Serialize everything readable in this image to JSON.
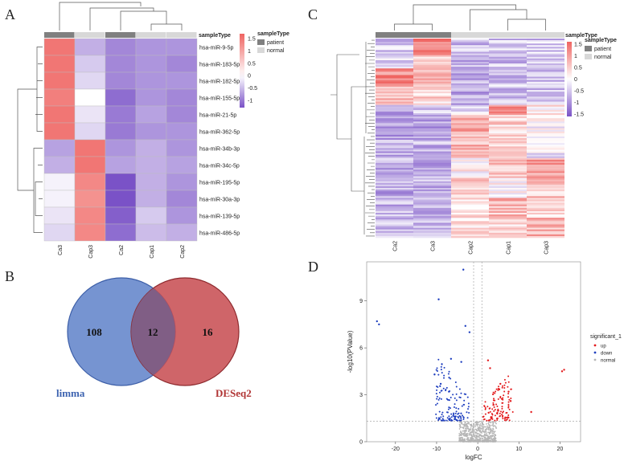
{
  "panels": {
    "A": "A",
    "B": "B",
    "C": "C",
    "D": "D"
  },
  "colors": {
    "high": "#ef6461",
    "mid": "#ffffff",
    "low": "#7a52c7",
    "patient": "#808080",
    "normal": "#d8d8d8",
    "limma": "#4472c4",
    "deseq2": "#c0392b",
    "up": "#e31a1c",
    "down": "#1f3fbf",
    "ns": "#b5b5b5"
  },
  "chart_data": [
    {
      "panel": "A",
      "type": "heatmap",
      "legend_title": "sampleType",
      "legend": [
        {
          "label": "patient",
          "color": "#808080"
        },
        {
          "label": "normal",
          "color": "#d8d8d8"
        }
      ],
      "annotation_title": "sampleType",
      "columns": [
        "Ca3",
        "Cap3",
        "Ca2",
        "Cap1",
        "Cap2"
      ],
      "column_types": [
        "patient",
        "normal",
        "patient",
        "normal",
        "normal"
      ],
      "rows": [
        "hsa-miR-9-5p",
        "hsa-miR-183-5p",
        "hsa-miR-182-5p",
        "hsa-miR-155-5p",
        "hsa-miR-21-5p",
        "hsa-miR-362-5p",
        "hsa-miR-34b-3p",
        "hsa-miR-34c-5p",
        "hsa-miR-195-5p",
        "hsa-miR-30a-3p",
        "hsa-miR-139-5p",
        "hsa-miR-486-5p"
      ],
      "values": [
        [
          1.5,
          -0.6,
          -0.9,
          -0.8,
          -0.8
        ],
        [
          1.5,
          -0.4,
          -0.9,
          -0.8,
          -0.9
        ],
        [
          1.5,
          -0.3,
          -0.9,
          -0.8,
          -0.8
        ],
        [
          1.4,
          0.0,
          -1.1,
          -0.8,
          -0.9
        ],
        [
          1.5,
          -0.2,
          -1.0,
          -0.7,
          -0.9
        ],
        [
          1.5,
          -0.3,
          -1.0,
          -0.8,
          -0.8
        ],
        [
          -0.7,
          1.5,
          -0.8,
          -0.6,
          -0.8
        ],
        [
          -0.6,
          1.5,
          -0.7,
          -0.6,
          -0.7
        ],
        [
          -0.1,
          1.3,
          -1.3,
          -0.6,
          -0.8
        ],
        [
          -0.1,
          1.2,
          -1.5,
          -0.6,
          -0.9
        ],
        [
          -0.2,
          1.3,
          -1.2,
          -0.4,
          -0.8
        ],
        [
          -0.3,
          1.3,
          -1.1,
          -0.5,
          -0.6
        ]
      ],
      "color_scale": {
        "ticks": [
          "1.5",
          "1",
          "0.5",
          "0",
          "-0.5",
          "-1"
        ],
        "range": [
          -1.3,
          1.7
        ]
      }
    },
    {
      "panel": "C",
      "type": "heatmap",
      "legend_title": "sampleType",
      "legend": [
        {
          "label": "patient",
          "color": "#808080"
        },
        {
          "label": "normal",
          "color": "#d8d8d8"
        }
      ],
      "annotation_title": "sampleType",
      "columns": [
        "Ca2",
        "Ca3",
        "Cap2",
        "Cap1",
        "Cap3"
      ],
      "column_types": [
        "patient",
        "patient",
        "normal",
        "normal",
        "normal"
      ],
      "row_count": 120,
      "color_scale": {
        "ticks": [
          "1.5",
          "1",
          "0.5",
          "0",
          "-0.5",
          "-1",
          "-1.5"
        ],
        "range": [
          -1.6,
          1.6
        ]
      }
    },
    {
      "panel": "B",
      "type": "venn",
      "sets": [
        {
          "name": "limma",
          "only": 108
        },
        {
          "name": "DESeq2",
          "only": 16
        }
      ],
      "intersection": 12
    },
    {
      "panel": "D",
      "type": "scatter",
      "xlabel": "logFC",
      "ylabel": "-log10(PValue)",
      "xlim": [
        -27,
        25
      ],
      "ylim": [
        0,
        11.5
      ],
      "xticks": [
        -20,
        -10,
        0,
        10,
        20
      ],
      "yticks": [
        0,
        3,
        6,
        9
      ],
      "threshold_y": 1.3,
      "threshold_x": [
        -1,
        1
      ],
      "legend_title": "significant_1",
      "legend": [
        {
          "label": "up",
          "color": "#e31a1c"
        },
        {
          "label": "down",
          "color": "#1f3fbf"
        },
        {
          "label": "normal",
          "color": "#b5b5b5"
        }
      ],
      "series": [
        {
          "name": "down",
          "points": [
            [
              -24.5,
              7.7
            ],
            [
              -24.0,
              7.5
            ],
            [
              -9.5,
              9.1
            ],
            [
              -3.5,
              11.0
            ],
            [
              -3.0,
              7.4
            ],
            [
              -2.0,
              7.0
            ],
            [
              -6.5,
              5.3
            ],
            [
              -4.0,
              5.1
            ],
            [
              -10.5,
              4.3
            ],
            [
              -9.0,
              3.7
            ],
            [
              -7.0,
              3.2
            ]
          ]
        },
        {
          "name": "up",
          "points": [
            [
              21.0,
              4.6
            ],
            [
              20.5,
              4.5
            ],
            [
              13.0,
              1.9
            ],
            [
              2.5,
              5.2
            ],
            [
              3.0,
              4.7
            ],
            [
              5.5,
              3.7
            ],
            [
              7.5,
              3.2
            ],
            [
              8.0,
              2.6
            ]
          ]
        }
      ]
    }
  ]
}
